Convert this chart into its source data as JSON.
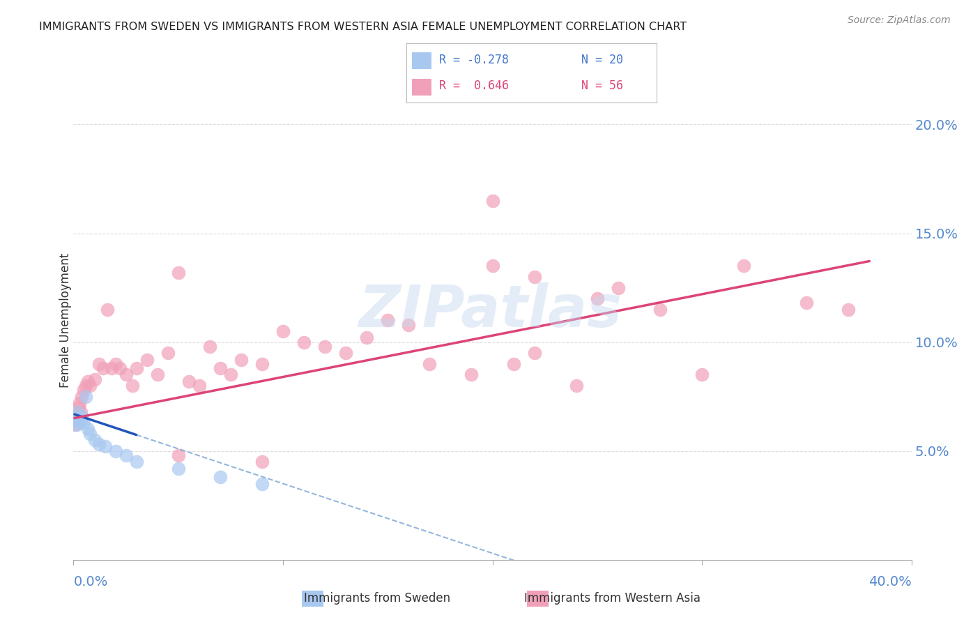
{
  "title": "IMMIGRANTS FROM SWEDEN VS IMMIGRANTS FROM WESTERN ASIA FEMALE UNEMPLOYMENT CORRELATION CHART",
  "source": "Source: ZipAtlas.com",
  "ylabel": "Female Unemployment",
  "y_ticks": [
    5.0,
    10.0,
    15.0,
    20.0
  ],
  "x_lim": [
    0.0,
    40.0
  ],
  "y_lim": [
    0.0,
    22.0
  ],
  "sweden_color": "#a8c8f0",
  "wasia_color": "#f0a0b8",
  "sweden_line_color": "#2255bb",
  "sweden_line_dash_color": "#6699cc",
  "wasia_line_color": "#dd4477",
  "background_color": "#ffffff",
  "grid_color": "#dddddd",
  "title_color": "#222222",
  "source_color": "#888888",
  "axis_label_color": "#5588cc",
  "legend_text_sweden_color": "#4477cc",
  "legend_text_wasia_color": "#dd4477",
  "sweden_x": [
    0.1,
    0.15,
    0.2,
    0.25,
    0.3,
    0.35,
    0.4,
    0.5,
    0.6,
    0.7,
    0.8,
    1.0,
    1.2,
    1.5,
    2.0,
    2.5,
    3.0,
    5.0,
    7.0,
    9.0
  ],
  "sweden_y": [
    6.5,
    6.2,
    6.8,
    6.3,
    6.5,
    6.4,
    6.6,
    6.3,
    7.5,
    6.0,
    5.8,
    5.5,
    5.3,
    5.2,
    5.0,
    4.8,
    4.5,
    4.2,
    3.8,
    3.5
  ],
  "wasia_x": [
    0.1,
    0.15,
    0.2,
    0.25,
    0.3,
    0.35,
    0.4,
    0.5,
    0.6,
    0.7,
    0.8,
    1.0,
    1.2,
    1.4,
    1.6,
    1.8,
    2.0,
    2.2,
    2.5,
    2.8,
    3.0,
    3.5,
    4.0,
    4.5,
    5.0,
    5.5,
    6.0,
    6.5,
    7.0,
    7.5,
    8.0,
    9.0,
    10.0,
    11.0,
    12.0,
    13.0,
    14.0,
    15.0,
    16.0,
    17.0,
    19.0,
    20.0,
    21.0,
    22.0,
    24.0,
    25.0,
    26.0,
    28.0,
    30.0,
    32.0,
    35.0,
    37.0,
    20.0,
    22.0,
    5.0,
    9.0
  ],
  "wasia_y": [
    6.2,
    6.5,
    6.8,
    7.0,
    7.2,
    6.8,
    7.5,
    7.8,
    8.0,
    8.2,
    8.0,
    8.3,
    9.0,
    8.8,
    11.5,
    8.8,
    9.0,
    8.8,
    8.5,
    8.0,
    8.8,
    9.2,
    8.5,
    9.5,
    4.8,
    8.2,
    8.0,
    9.8,
    8.8,
    8.5,
    9.2,
    9.0,
    10.5,
    10.0,
    9.8,
    9.5,
    10.2,
    11.0,
    10.8,
    9.0,
    8.5,
    13.5,
    9.0,
    9.5,
    8.0,
    12.0,
    12.5,
    11.5,
    8.5,
    13.5,
    11.8,
    11.5,
    16.5,
    13.0,
    13.2,
    4.5
  ],
  "sweden_trend_x": [
    0.05,
    9.5
  ],
  "sweden_trend_y_start": 6.7,
  "sweden_trend_slope": -0.32,
  "wasia_trend_x": [
    0.05,
    38.0
  ],
  "wasia_trend_y_start": 6.5,
  "wasia_trend_slope": 0.19
}
